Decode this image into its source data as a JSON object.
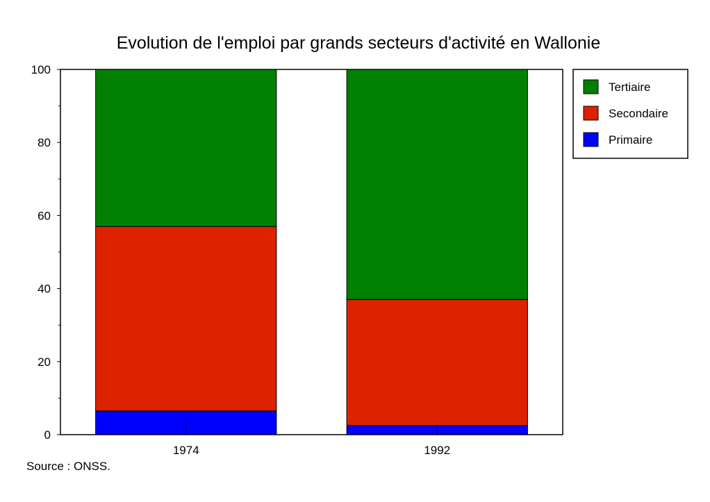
{
  "chart_data": {
    "type": "bar",
    "stacked": true,
    "title": "Evolution de l'emploi par grands secteurs d'activité en Wallonie",
    "categories": [
      "1974",
      "1992"
    ],
    "series": [
      {
        "name": "Primaire",
        "color": "#0000ff",
        "values": [
          6.5,
          2.5
        ]
      },
      {
        "name": "Secondaire",
        "color": "#dd2200",
        "values": [
          50.5,
          34.5
        ]
      },
      {
        "name": "Tertiaire",
        "color": "#008000",
        "values": [
          43.0,
          63.0
        ]
      }
    ],
    "ylim": [
      0,
      100
    ],
    "yticks": [
      0,
      20,
      40,
      60,
      80,
      100
    ],
    "xlabel": "",
    "ylabel": "",
    "legend_order": [
      "Tertiaire",
      "Secondaire",
      "Primaire"
    ],
    "legend_position": "right",
    "grid": false
  },
  "source": "Source : ONSS."
}
